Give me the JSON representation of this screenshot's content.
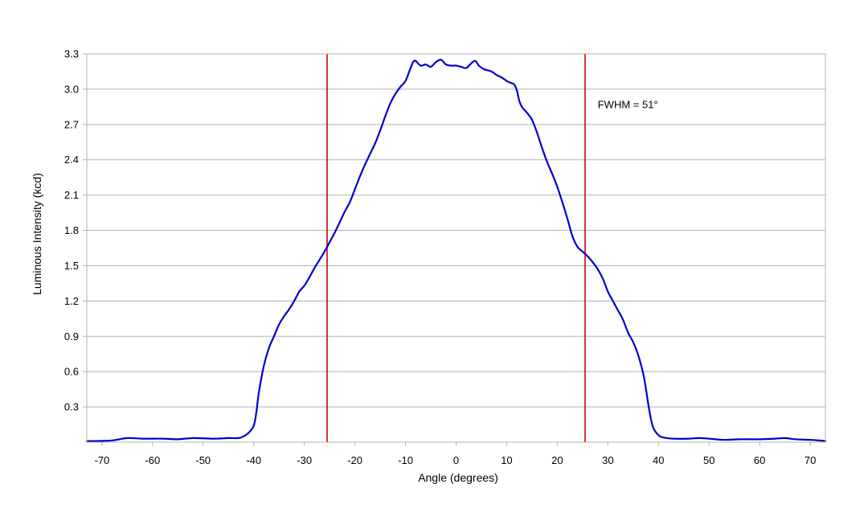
{
  "chart_data": {
    "type": "line",
    "title": "",
    "xlabel": "Angle (degrees)",
    "ylabel": "Luminous Intensity (kcd)",
    "xlim": [
      -73,
      73
    ],
    "ylim": [
      0,
      3.3
    ],
    "x_ticks": [
      -70,
      -60,
      -50,
      -40,
      -30,
      -20,
      -10,
      0,
      10,
      20,
      30,
      40,
      50,
      60,
      70
    ],
    "x_tick_labels": [
      "-70",
      "-60",
      "-50",
      "-40",
      "-30",
      "-20",
      "-10",
      "0",
      "10",
      "20",
      "30",
      "40",
      "50",
      "60",
      "70"
    ],
    "y_ticks": [
      0.3,
      0.6,
      0.9,
      1.2,
      1.5,
      1.8,
      2.1,
      2.4,
      2.7,
      3.0,
      3.3
    ],
    "y_tick_labels": [
      "0.3",
      "0.6",
      "0.9",
      "1.2",
      "1.5",
      "1.8",
      "2.1",
      "2.4",
      "2.7",
      "3.0",
      "3.3"
    ],
    "grid": "horizontal",
    "legend": "none",
    "series": [
      {
        "color": "#0000cc",
        "points": [
          [
            -73,
            0.01
          ],
          [
            -71,
            0.01
          ],
          [
            -68,
            0.015
          ],
          [
            -65,
            0.035
          ],
          [
            -62,
            0.03
          ],
          [
            -58,
            0.03
          ],
          [
            -55,
            0.025
          ],
          [
            -52,
            0.035
          ],
          [
            -48,
            0.03
          ],
          [
            -45,
            0.035
          ],
          [
            -43,
            0.035
          ],
          [
            -42,
            0.05
          ],
          [
            -41,
            0.08
          ],
          [
            -40,
            0.14
          ],
          [
            -39.5,
            0.25
          ],
          [
            -39,
            0.42
          ],
          [
            -38,
            0.65
          ],
          [
            -37,
            0.8
          ],
          [
            -36,
            0.9
          ],
          [
            -35,
            1.0
          ],
          [
            -34,
            1.07
          ],
          [
            -33,
            1.13
          ],
          [
            -32,
            1.2
          ],
          [
            -31,
            1.28
          ],
          [
            -30,
            1.33
          ],
          [
            -29,
            1.4
          ],
          [
            -28,
            1.48
          ],
          [
            -27,
            1.55
          ],
          [
            -26,
            1.62
          ],
          [
            -25,
            1.7
          ],
          [
            -24,
            1.78
          ],
          [
            -23,
            1.87
          ],
          [
            -22,
            1.96
          ],
          [
            -21,
            2.04
          ],
          [
            -20,
            2.15
          ],
          [
            -19,
            2.26
          ],
          [
            -18,
            2.36
          ],
          [
            -17,
            2.45
          ],
          [
            -16,
            2.54
          ],
          [
            -15,
            2.65
          ],
          [
            -14,
            2.77
          ],
          [
            -13,
            2.88
          ],
          [
            -12,
            2.96
          ],
          [
            -11,
            3.02
          ],
          [
            -10,
            3.07
          ],
          [
            -9,
            3.18
          ],
          [
            -8.5,
            3.23
          ],
          [
            -8,
            3.24
          ],
          [
            -7,
            3.2
          ],
          [
            -6,
            3.21
          ],
          [
            -5,
            3.19
          ],
          [
            -4,
            3.23
          ],
          [
            -3,
            3.25
          ],
          [
            -2,
            3.21
          ],
          [
            -1,
            3.2
          ],
          [
            0,
            3.2
          ],
          [
            1,
            3.19
          ],
          [
            2,
            3.18
          ],
          [
            3,
            3.22
          ],
          [
            3.8,
            3.24
          ],
          [
            4.5,
            3.2
          ],
          [
            5.5,
            3.17
          ],
          [
            7,
            3.15
          ],
          [
            8,
            3.12
          ],
          [
            9,
            3.1
          ],
          [
            10,
            3.07
          ],
          [
            11,
            3.05
          ],
          [
            11.5,
            3.04
          ],
          [
            12,
            2.99
          ],
          [
            12.5,
            2.9
          ],
          [
            13,
            2.85
          ],
          [
            14,
            2.8
          ],
          [
            15,
            2.74
          ],
          [
            16,
            2.63
          ],
          [
            17,
            2.5
          ],
          [
            18,
            2.38
          ],
          [
            19,
            2.28
          ],
          [
            20,
            2.17
          ],
          [
            21,
            2.04
          ],
          [
            22,
            1.9
          ],
          [
            23,
            1.75
          ],
          [
            24,
            1.66
          ],
          [
            25,
            1.62
          ],
          [
            26,
            1.58
          ],
          [
            27,
            1.53
          ],
          [
            28,
            1.47
          ],
          [
            29,
            1.39
          ],
          [
            30,
            1.28
          ],
          [
            31,
            1.2
          ],
          [
            32,
            1.12
          ],
          [
            33,
            1.04
          ],
          [
            34,
            0.93
          ],
          [
            35,
            0.85
          ],
          [
            36,
            0.74
          ],
          [
            37,
            0.58
          ],
          [
            37.5,
            0.46
          ],
          [
            38,
            0.32
          ],
          [
            38.5,
            0.2
          ],
          [
            39,
            0.12
          ],
          [
            40,
            0.06
          ],
          [
            41,
            0.04
          ],
          [
            43,
            0.03
          ],
          [
            46,
            0.03
          ],
          [
            48,
            0.035
          ],
          [
            50,
            0.03
          ],
          [
            53,
            0.02
          ],
          [
            56,
            0.025
          ],
          [
            60,
            0.025
          ],
          [
            63,
            0.03
          ],
          [
            65,
            0.035
          ],
          [
            67,
            0.025
          ],
          [
            70,
            0.02
          ],
          [
            73,
            0.01
          ]
        ]
      }
    ],
    "reference_lines": [
      {
        "x": -25.5,
        "color": "#cc0000"
      },
      {
        "x": 25.5,
        "color": "#cc0000"
      }
    ],
    "annotations": [
      {
        "text": "FWHM = 51°",
        "x": 28,
        "y": 2.84
      }
    ]
  }
}
